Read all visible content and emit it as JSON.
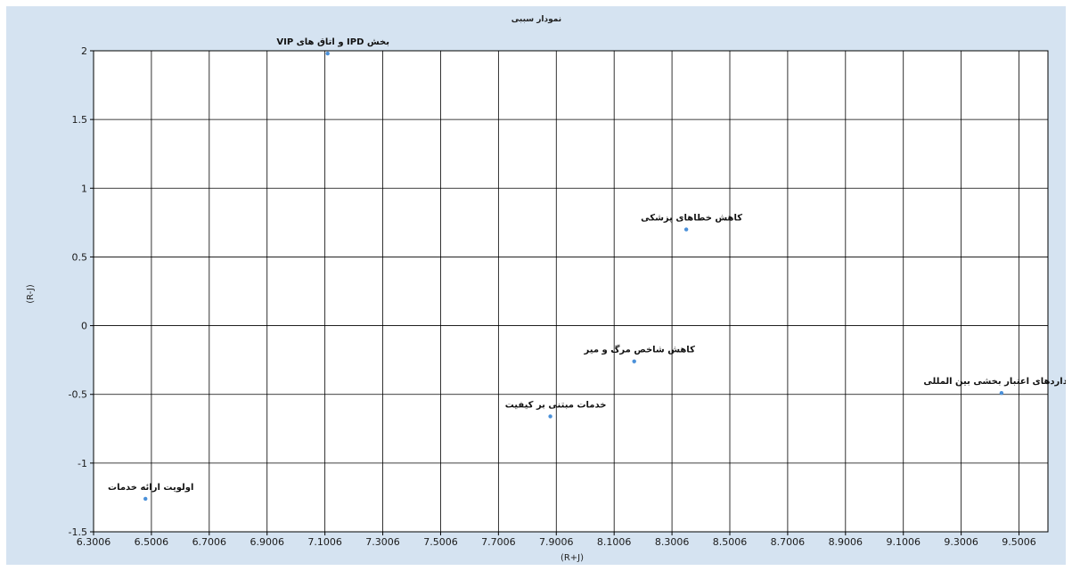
{
  "chart_data": {
    "type": "scatter",
    "title": "نمودار سببی",
    "xlabel": "(R+J)",
    "ylabel": "(R-J)",
    "xlim": [
      6.3006,
      9.6006
    ],
    "ylim": [
      -1.5,
      2
    ],
    "x_ticks": [
      6.3006,
      6.5006,
      6.7006,
      6.9006,
      7.1006,
      7.3006,
      7.5006,
      7.7006,
      7.9006,
      8.1006,
      8.3006,
      8.5006,
      8.7006,
      8.9006,
      9.1006,
      9.3006,
      9.5006
    ],
    "x_tick_labels": [
      "6.3006",
      "6.5006",
      "6.7006",
      "6.9006",
      "7.1006",
      "7.3006",
      "7.5006",
      "7.7006",
      "7.9006",
      "8.1006",
      "8.3006",
      "8.5006",
      "8.7006",
      "8.9006",
      "9.1006",
      "9.3006",
      "9.5006"
    ],
    "y_ticks": [
      -1.5,
      -1,
      -0.5,
      0,
      0.5,
      1,
      1.5,
      2
    ],
    "y_tick_labels": [
      "-1.5",
      "-1",
      "-0.5",
      "0",
      "0.5",
      "1",
      "1.5",
      "2"
    ],
    "grid": true,
    "legend": "none",
    "point_color": "#4a90d9",
    "points": [
      {
        "label": "VIP و اتاق های IPD بخش",
        "x": 7.11,
        "y": 1.98
      },
      {
        "label": "کاهش خطاهای پزشکی",
        "x": 8.35,
        "y": 0.7
      },
      {
        "label": "کاهش شاخص مرگ و میر",
        "x": 8.17,
        "y": -0.26
      },
      {
        "label": "استانداردهای اعتبار بخشی بین المللی",
        "x": 9.44,
        "y": -0.49
      },
      {
        "label": "خدمات مبتنی بر کیفیت",
        "x": 7.88,
        "y": -0.66
      },
      {
        "label": "اولویت ارائه خدمات",
        "x": 6.48,
        "y": -1.26
      }
    ]
  }
}
